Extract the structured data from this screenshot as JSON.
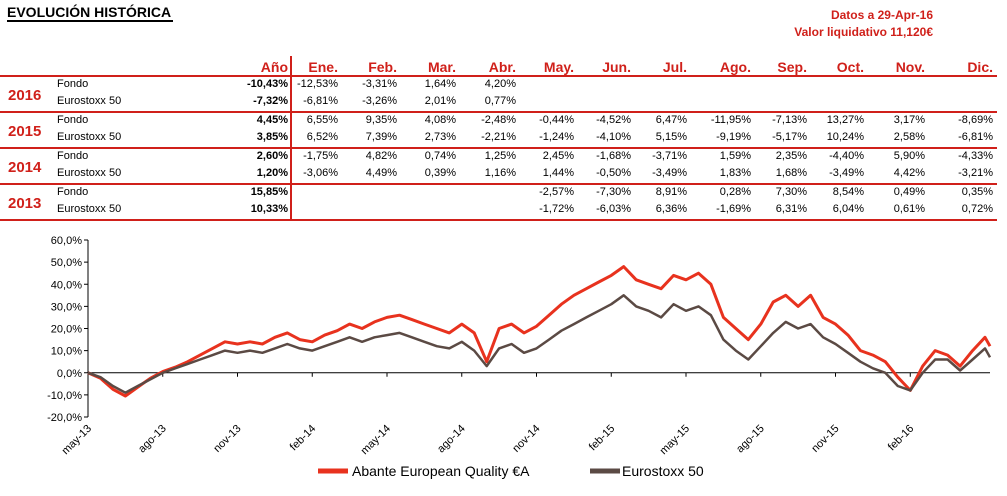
{
  "header": {
    "title": "EVOLUCIÓN HISTÓRICA",
    "date_line": "Datos a 29-Apr-16",
    "nav_line": "Valor liquidativo 11,120€"
  },
  "table": {
    "columns": [
      "Año",
      "Ene.",
      "Feb.",
      "Mar.",
      "Abr.",
      "May.",
      "Jun.",
      "Jul.",
      "Ago.",
      "Sep.",
      "Oct.",
      "Nov.",
      "Dic."
    ],
    "years": [
      {
        "year": "2016",
        "rows": [
          {
            "label": "Fondo",
            "values": [
              "-10,43%",
              "-12,53%",
              "-3,31%",
              "1,64%",
              "4,20%",
              "",
              "",
              "",
              "",
              "",
              "",
              "",
              ""
            ]
          },
          {
            "label": "Eurostoxx 50",
            "values": [
              "-7,32%",
              "-6,81%",
              "-3,26%",
              "2,01%",
              "0,77%",
              "",
              "",
              "",
              "",
              "",
              "",
              "",
              ""
            ]
          }
        ]
      },
      {
        "year": "2015",
        "rows": [
          {
            "label": "Fondo",
            "values": [
              "4,45%",
              "6,55%",
              "9,35%",
              "4,08%",
              "-2,48%",
              "-0,44%",
              "-4,52%",
              "6,47%",
              "-11,95%",
              "-7,13%",
              "13,27%",
              "3,17%",
              "-8,69%"
            ]
          },
          {
            "label": "Eurostoxx 50",
            "values": [
              "3,85%",
              "6,52%",
              "7,39%",
              "2,73%",
              "-2,21%",
              "-1,24%",
              "-4,10%",
              "5,15%",
              "-9,19%",
              "-5,17%",
              "10,24%",
              "2,58%",
              "-6,81%"
            ]
          }
        ]
      },
      {
        "year": "2014",
        "rows": [
          {
            "label": "Fondo",
            "values": [
              "2,60%",
              "-1,75%",
              "4,82%",
              "0,74%",
              "1,25%",
              "2,45%",
              "-1,68%",
              "-3,71%",
              "1,59%",
              "2,35%",
              "-4,40%",
              "5,90%",
              "-4,33%"
            ]
          },
          {
            "label": "Eurostoxx 50",
            "values": [
              "1,20%",
              "-3,06%",
              "4,49%",
              "0,39%",
              "1,16%",
              "1,44%",
              "-0,50%",
              "-3,49%",
              "1,83%",
              "1,68%",
              "-3,49%",
              "4,42%",
              "-3,21%"
            ]
          }
        ]
      },
      {
        "year": "2013",
        "rows": [
          {
            "label": "Fondo",
            "values": [
              "15,85%",
              "",
              "",
              "",
              "",
              "-2,57%",
              "-7,30%",
              "8,91%",
              "0,28%",
              "7,30%",
              "8,54%",
              "0,49%",
              "0,35%"
            ]
          },
          {
            "label": "Eurostoxx 50",
            "values": [
              "10,33%",
              "",
              "",
              "",
              "",
              "-1,72%",
              "-6,03%",
              "6,36%",
              "-1,69%",
              "6,31%",
              "6,04%",
              "0,61%",
              "0,72%"
            ]
          }
        ]
      }
    ]
  },
  "chart_data": {
    "type": "line",
    "x_tick_labels": [
      "may-13",
      "ago-13",
      "nov-13",
      "feb-14",
      "may-14",
      "ago-14",
      "nov-14",
      "feb-15",
      "may-15",
      "ago-15",
      "nov-15",
      "feb-16"
    ],
    "y_tick_labels": [
      "60,0%",
      "50,0%",
      "40,0%",
      "30,0%",
      "20,0%",
      "10,0%",
      "0,0%",
      "-10,0%",
      "-20,0%"
    ],
    "ylim": [
      -20,
      60
    ],
    "x_unit": "months since first tick (may-13)",
    "xlim": [
      0,
      36.2
    ],
    "grid": false,
    "legend_position": "bottom",
    "series": [
      {
        "name": "Abante European Quality €A",
        "color": "#e8321e",
        "x": [
          0,
          0.5,
          1.0,
          1.5,
          2.0,
          2.5,
          3.0,
          3.5,
          4.0,
          4.5,
          5.0,
          5.5,
          6.0,
          6.5,
          7.0,
          7.5,
          8.0,
          8.5,
          9.0,
          9.5,
          10.0,
          10.5,
          11.0,
          11.5,
          12.0,
          12.5,
          13.0,
          13.5,
          14.0,
          14.5,
          15.0,
          15.5,
          16.0,
          16.5,
          17.0,
          17.5,
          18.0,
          18.5,
          19.0,
          19.5,
          20.0,
          20.5,
          21.0,
          21.5,
          22.0,
          22.5,
          23.0,
          23.5,
          24.0,
          24.5,
          25.0,
          25.5,
          26.0,
          26.5,
          27.0,
          27.5,
          28.0,
          28.5,
          29.0,
          29.5,
          30.0,
          30.5,
          31.0,
          31.5,
          32.0,
          32.5,
          33.0,
          33.5,
          34.0,
          34.5,
          35.0,
          35.5,
          36.0,
          36.2
        ],
        "values": [
          0,
          -2.5,
          -7.5,
          -10.5,
          -6.5,
          -2.5,
          0.5,
          2.5,
          5,
          8,
          11,
          14,
          13,
          14,
          13,
          16,
          18,
          15,
          14,
          17,
          19,
          22,
          20,
          23,
          25,
          26,
          24,
          22,
          20,
          18,
          22,
          18,
          5,
          20,
          22,
          18,
          21,
          26,
          31,
          35,
          38,
          41,
          44,
          48,
          42,
          40,
          38,
          44,
          42,
          45,
          40,
          25,
          20,
          15,
          22,
          32,
          35,
          30,
          35,
          25,
          22,
          17,
          10,
          8,
          5,
          -2,
          -8,
          3,
          10,
          8,
          3,
          10,
          16,
          12
        ]
      },
      {
        "name": "Eurostoxx 50",
        "color": "#5b4a44",
        "x": [
          0,
          0.5,
          1.0,
          1.5,
          2.0,
          2.5,
          3.0,
          3.5,
          4.0,
          4.5,
          5.0,
          5.5,
          6.0,
          6.5,
          7.0,
          7.5,
          8.0,
          8.5,
          9.0,
          9.5,
          10.0,
          10.5,
          11.0,
          11.5,
          12.0,
          12.5,
          13.0,
          13.5,
          14.0,
          14.5,
          15.0,
          15.5,
          16.0,
          16.5,
          17.0,
          17.5,
          18.0,
          18.5,
          19.0,
          19.5,
          20.0,
          20.5,
          21.0,
          21.5,
          22.0,
          22.5,
          23.0,
          23.5,
          24.0,
          24.5,
          25.0,
          25.5,
          26.0,
          26.5,
          27.0,
          27.5,
          28.0,
          28.5,
          29.0,
          29.5,
          30.0,
          30.5,
          31.0,
          31.5,
          32.0,
          32.5,
          33.0,
          33.5,
          34.0,
          34.5,
          35.0,
          35.5,
          36.0,
          36.2
        ],
        "values": [
          0,
          -2,
          -6,
          -9,
          -6,
          -3,
          0,
          2,
          4,
          6,
          8,
          10,
          9,
          10,
          9,
          11,
          13,
          11,
          10,
          12,
          14,
          16,
          14,
          16,
          17,
          18,
          16,
          14,
          12,
          11,
          14,
          10,
          3,
          11,
          13,
          9,
          11,
          15,
          19,
          22,
          25,
          28,
          31,
          35,
          30,
          28,
          25,
          31,
          28,
          30,
          26,
          15,
          10,
          6,
          12,
          18,
          23,
          20,
          22,
          16,
          13,
          9,
          5,
          2,
          0,
          -6,
          -8,
          0,
          6,
          6,
          1,
          6,
          11,
          7
        ]
      }
    ]
  }
}
